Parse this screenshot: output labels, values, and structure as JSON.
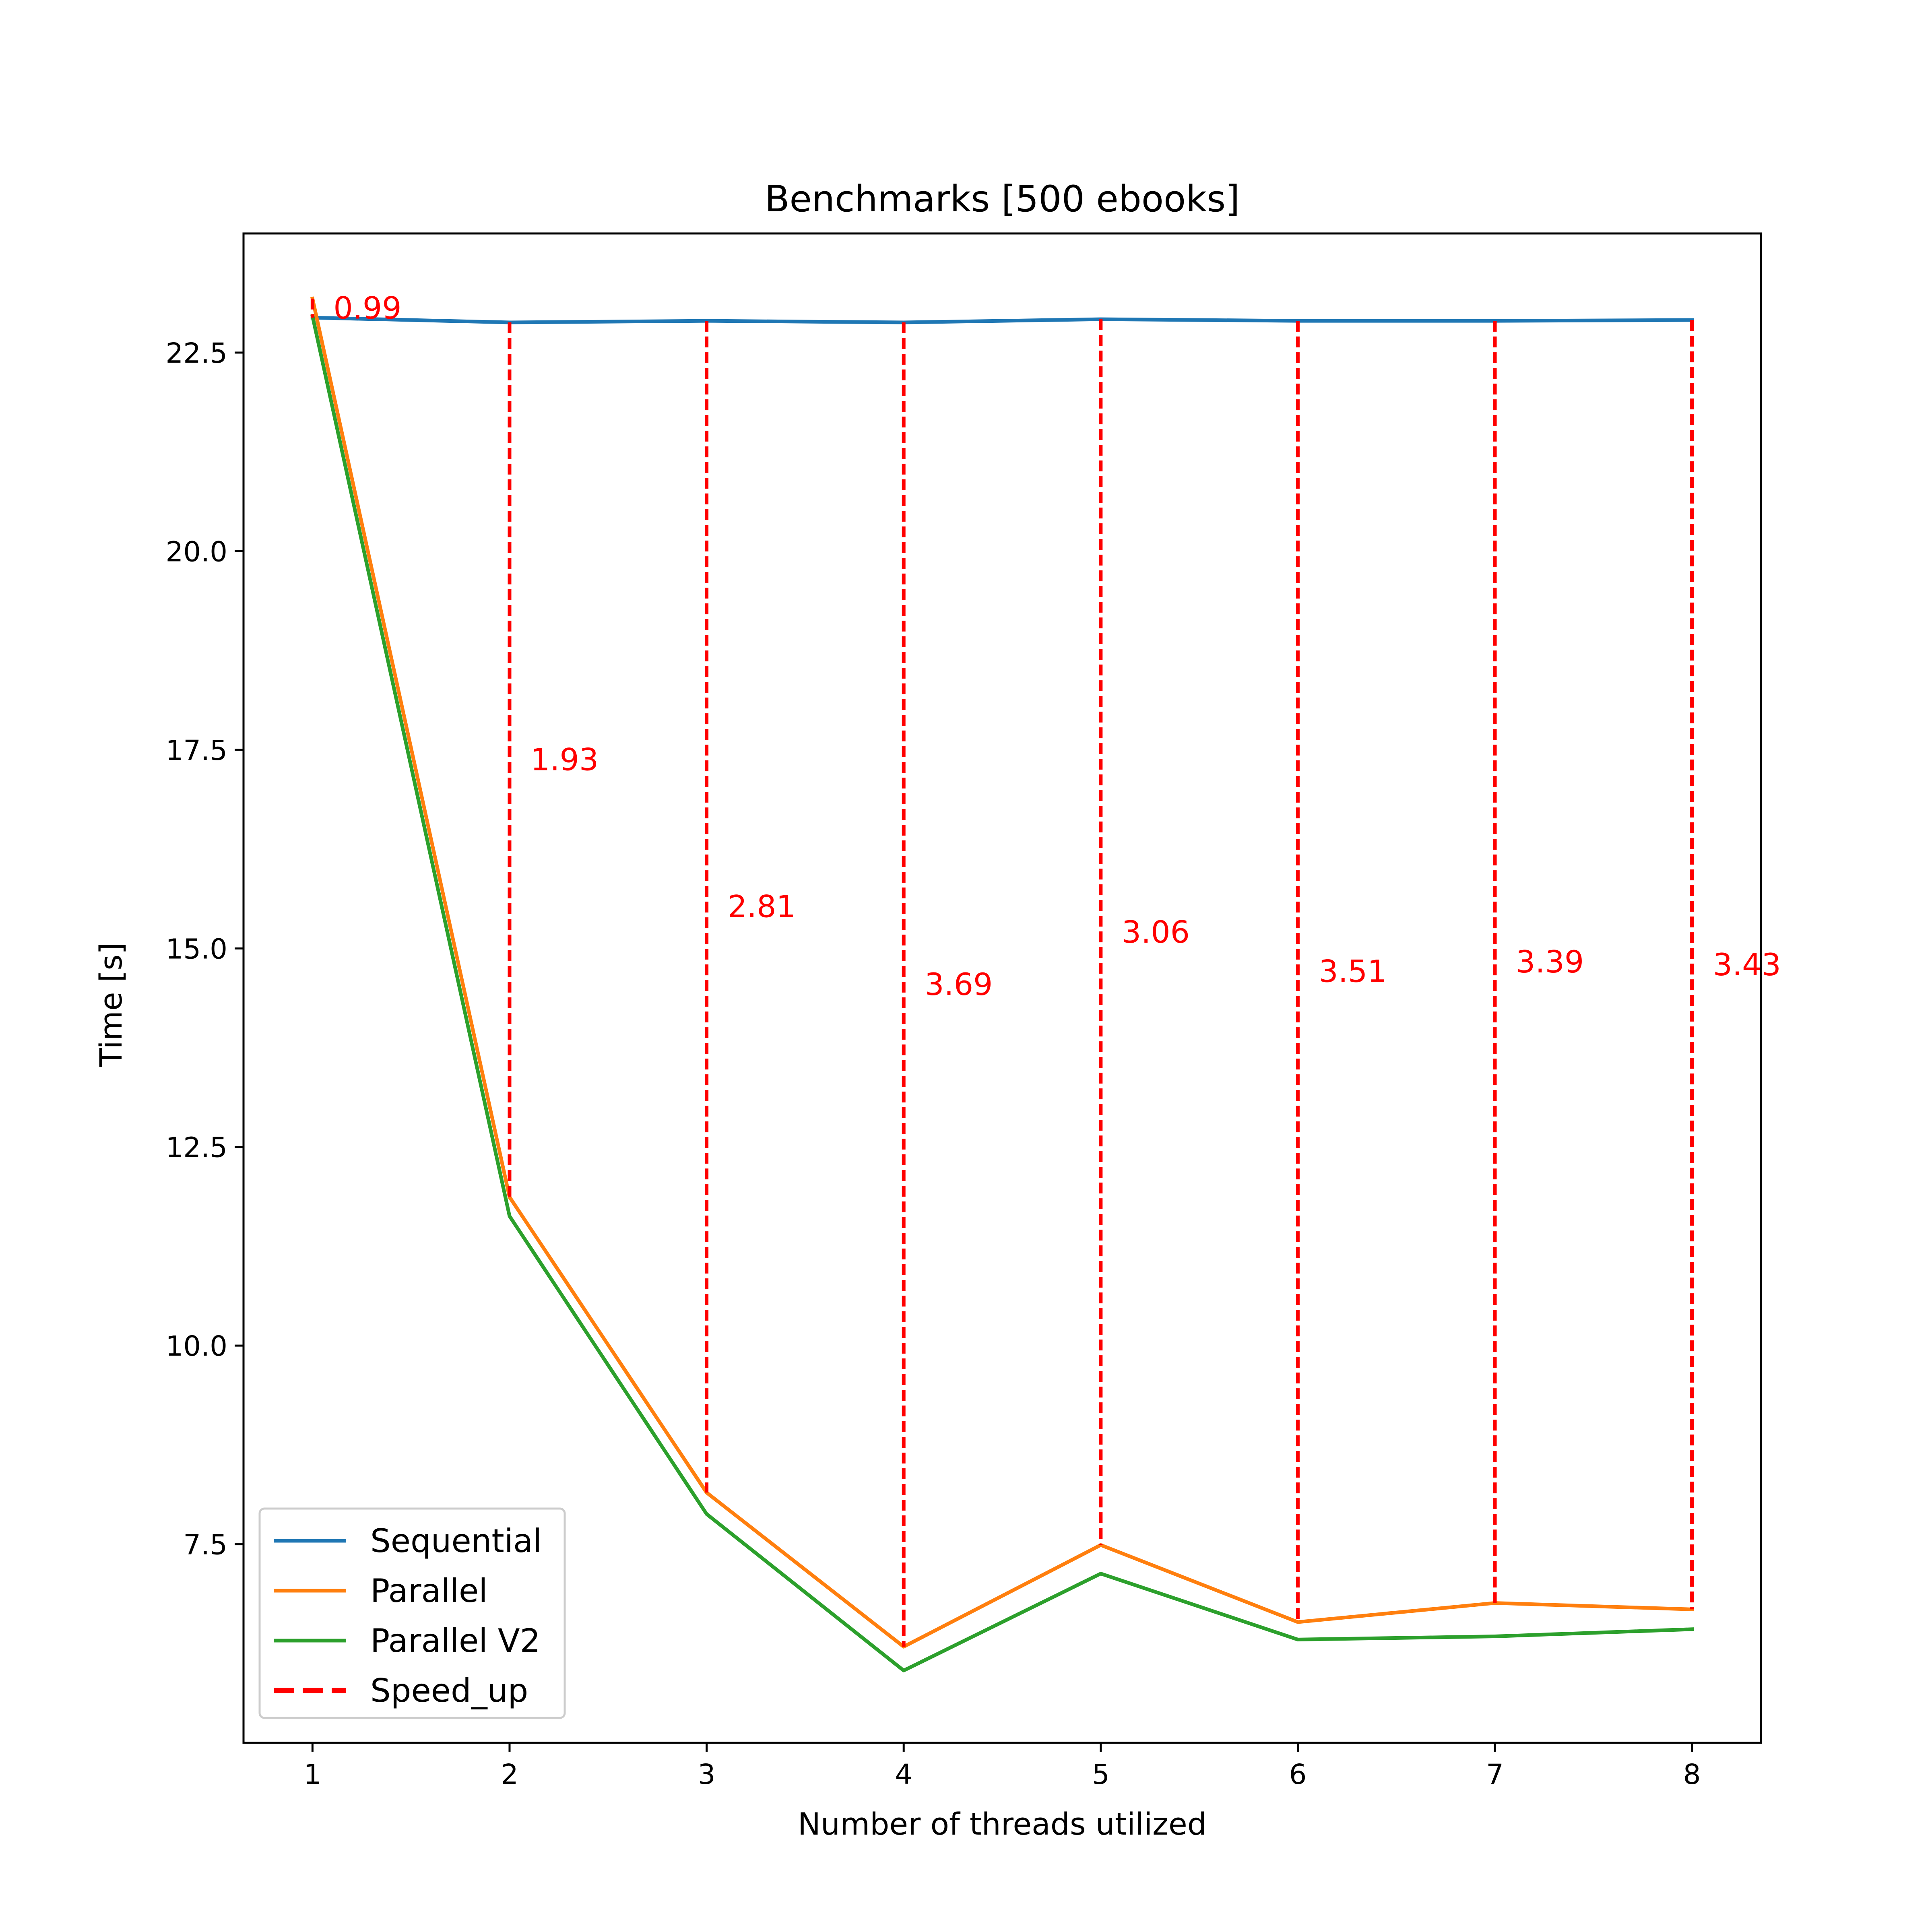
{
  "chart_data": {
    "type": "line",
    "title": "Benchmarks [500 ebooks]",
    "xlabel": "Number of threads utilized",
    "ylabel": "Time [s]",
    "x": [
      1,
      2,
      3,
      4,
      5,
      6,
      7,
      8
    ],
    "xlim": [
      0.65,
      8.35
    ],
    "ylim": [
      5.0,
      24.0
    ],
    "x_ticks": [
      1,
      2,
      3,
      4,
      5,
      6,
      7,
      8
    ],
    "x_tick_labels": [
      "1",
      "2",
      "3",
      "4",
      "5",
      "6",
      "7",
      "8"
    ],
    "y_ticks": [
      7.5,
      10.0,
      12.5,
      15.0,
      17.5,
      20.0,
      22.5
    ],
    "y_tick_labels": [
      "7.5",
      "10.0",
      "12.5",
      "15.0",
      "17.5",
      "20.0",
      "22.5"
    ],
    "grid": false,
    "legend_position": "lower-left",
    "series": [
      {
        "name": "Sequential",
        "color": "#1f77b4",
        "values": [
          22.94,
          22.88,
          22.9,
          22.88,
          22.92,
          22.9,
          22.9,
          22.91
        ]
      },
      {
        "name": "Parallel",
        "color": "#ff7f0e",
        "values": [
          23.18,
          11.87,
          8.15,
          6.21,
          7.49,
          6.52,
          6.76,
          6.68
        ]
      },
      {
        "name": "Parallel V2",
        "color": "#2ca02c",
        "values": [
          22.96,
          11.63,
          7.88,
          5.91,
          7.13,
          6.3,
          6.34,
          6.43
        ]
      }
    ],
    "speedup": {
      "name": "Speed_up",
      "color": "#ff0000",
      "values": [
        0.99,
        1.93,
        2.81,
        3.69,
        3.06,
        3.51,
        3.39,
        3.43
      ],
      "labels": [
        "0.99",
        "1.93",
        "2.81",
        "3.69",
        "3.06",
        "3.51",
        "3.39",
        "3.43"
      ]
    }
  }
}
